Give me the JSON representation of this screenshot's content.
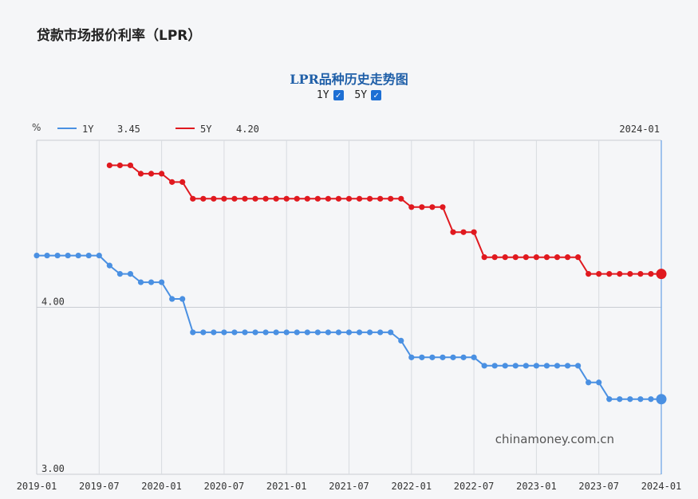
{
  "page": {
    "title": "贷款市场报价利率（LPR）"
  },
  "toggles": [
    {
      "label": "1Y",
      "checked": true
    },
    {
      "label": "5Y",
      "checked": true
    }
  ],
  "watermark": "chinamoney.com.cn",
  "legend": {
    "unit": "%",
    "items": [
      {
        "name": "1Y",
        "value": "3.45",
        "color": "#4a90e2"
      },
      {
        "name": "5Y",
        "value": "4.20",
        "color": "#e0191f"
      }
    ],
    "current_date": "2024-01"
  },
  "chart_data": {
    "type": "line",
    "title": "LPR品种历史走势图",
    "x_tick_labels": [
      "2019-01",
      "2019-07",
      "2020-01",
      "2020-07",
      "2021-01",
      "2021-07",
      "2022-01",
      "2022-07",
      "2023-01",
      "2023-07",
      "2024-01"
    ],
    "y_tick_labels": [
      "4.00",
      "3.00"
    ],
    "ylim": [
      3.0,
      5.0
    ],
    "grid": true,
    "series": [
      {
        "name": "1Y",
        "color": "#4a90e2",
        "x": [
          "2019-01",
          "2019-02",
          "2019-03",
          "2019-04",
          "2019-05",
          "2019-06",
          "2019-07",
          "2019-08",
          "2019-09",
          "2019-10",
          "2019-11",
          "2019-12",
          "2020-01",
          "2020-02",
          "2020-03",
          "2020-04",
          "2020-05",
          "2020-06",
          "2020-07",
          "2020-08",
          "2020-09",
          "2020-10",
          "2020-11",
          "2020-12",
          "2021-01",
          "2021-02",
          "2021-03",
          "2021-04",
          "2021-05",
          "2021-06",
          "2021-07",
          "2021-08",
          "2021-09",
          "2021-10",
          "2021-11",
          "2021-12",
          "2022-01",
          "2022-02",
          "2022-03",
          "2022-04",
          "2022-05",
          "2022-06",
          "2022-07",
          "2022-08",
          "2022-09",
          "2022-10",
          "2022-11",
          "2022-12",
          "2023-01",
          "2023-02",
          "2023-03",
          "2023-04",
          "2023-05",
          "2023-06",
          "2023-07",
          "2023-08",
          "2023-09",
          "2023-10",
          "2023-11",
          "2023-12",
          "2024-01"
        ],
        "values": [
          4.31,
          4.31,
          4.31,
          4.31,
          4.31,
          4.31,
          4.31,
          4.25,
          4.2,
          4.2,
          4.15,
          4.15,
          4.15,
          4.05,
          4.05,
          3.85,
          3.85,
          3.85,
          3.85,
          3.85,
          3.85,
          3.85,
          3.85,
          3.85,
          3.85,
          3.85,
          3.85,
          3.85,
          3.85,
          3.85,
          3.85,
          3.85,
          3.85,
          3.85,
          3.85,
          3.8,
          3.7,
          3.7,
          3.7,
          3.7,
          3.7,
          3.7,
          3.7,
          3.65,
          3.65,
          3.65,
          3.65,
          3.65,
          3.65,
          3.65,
          3.65,
          3.65,
          3.65,
          3.55,
          3.55,
          3.45,
          3.45,
          3.45,
          3.45,
          3.45,
          3.45
        ]
      },
      {
        "name": "5Y",
        "color": "#e0191f",
        "x": [
          "2019-08",
          "2019-09",
          "2019-10",
          "2019-11",
          "2019-12",
          "2020-01",
          "2020-02",
          "2020-03",
          "2020-04",
          "2020-05",
          "2020-06",
          "2020-07",
          "2020-08",
          "2020-09",
          "2020-10",
          "2020-11",
          "2020-12",
          "2021-01",
          "2021-02",
          "2021-03",
          "2021-04",
          "2021-05",
          "2021-06",
          "2021-07",
          "2021-08",
          "2021-09",
          "2021-10",
          "2021-11",
          "2021-12",
          "2022-01",
          "2022-02",
          "2022-03",
          "2022-04",
          "2022-05",
          "2022-06",
          "2022-07",
          "2022-08",
          "2022-09",
          "2022-10",
          "2022-11",
          "2022-12",
          "2023-01",
          "2023-02",
          "2023-03",
          "2023-04",
          "2023-05",
          "2023-06",
          "2023-07",
          "2023-08",
          "2023-09",
          "2023-10",
          "2023-11",
          "2023-12",
          "2024-01"
        ],
        "values": [
          4.85,
          4.85,
          4.85,
          4.8,
          4.8,
          4.8,
          4.75,
          4.75,
          4.65,
          4.65,
          4.65,
          4.65,
          4.65,
          4.65,
          4.65,
          4.65,
          4.65,
          4.65,
          4.65,
          4.65,
          4.65,
          4.65,
          4.65,
          4.65,
          4.65,
          4.65,
          4.65,
          4.65,
          4.65,
          4.6,
          4.6,
          4.6,
          4.6,
          4.45,
          4.45,
          4.45,
          4.3,
          4.3,
          4.3,
          4.3,
          4.3,
          4.3,
          4.3,
          4.3,
          4.3,
          4.3,
          4.2,
          4.2,
          4.2,
          4.2,
          4.2,
          4.2,
          4.2,
          4.2
        ]
      }
    ]
  }
}
